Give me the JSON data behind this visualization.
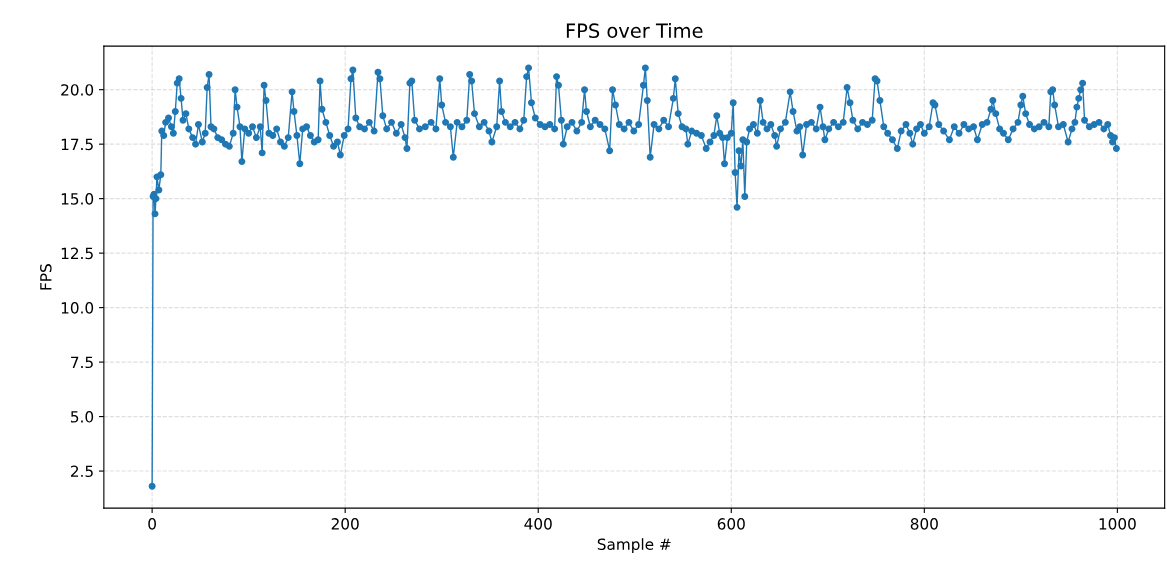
{
  "chart_data": {
    "type": "line",
    "title": "FPS over Time",
    "xlabel": "Sample #",
    "ylabel": "FPS",
    "xlim": [
      -50,
      1049
    ],
    "ylim": [
      0.8,
      22.0
    ],
    "xticks": [
      0,
      200,
      400,
      600,
      800,
      1000
    ],
    "yticks": [
      {
        "value": 2.5,
        "label": "2.5"
      },
      {
        "value": 5,
        "label": "5.0"
      },
      {
        "value": 7.5,
        "label": "7.5"
      },
      {
        "value": 10,
        "label": "10.0"
      },
      {
        "value": 12.5,
        "label": "12.5"
      },
      {
        "value": 15,
        "label": "15.0"
      },
      {
        "value": 17.5,
        "label": "17.5"
      },
      {
        "value": 20,
        "label": "20.0"
      }
    ],
    "grid": true,
    "marker": "circle",
    "line_style": "solid",
    "series": [
      {
        "color": "#1f77b4",
        "x": [
          0,
          1,
          2,
          3,
          4,
          5,
          7,
          9,
          10,
          12,
          14,
          17,
          20,
          22,
          24,
          26,
          28,
          30,
          32,
          35,
          38,
          42,
          45,
          48,
          52,
          55,
          57,
          59,
          61,
          64,
          68,
          72,
          76,
          80,
          84,
          86,
          88,
          91,
          93,
          96,
          100,
          104,
          108,
          112,
          114,
          116,
          118,
          121,
          125,
          129,
          133,
          137,
          141,
          145,
          147,
          150,
          153,
          156,
          160,
          164,
          168,
          172,
          174,
          176,
          180,
          184,
          188,
          192,
          195,
          199,
          203,
          206,
          208,
          211,
          215,
          220,
          225,
          230,
          234,
          236,
          239,
          243,
          248,
          253,
          258,
          262,
          264,
          267,
          269,
          272,
          277,
          283,
          289,
          294,
          298,
          300,
          304,
          309,
          312,
          316,
          321,
          326,
          329,
          331,
          334,
          339,
          344,
          349,
          352,
          357,
          360,
          362,
          366,
          371,
          376,
          381,
          385,
          388,
          390,
          393,
          397,
          402,
          407,
          412,
          417,
          419,
          421,
          424,
          426,
          430,
          435,
          440,
          445,
          448,
          450,
          454,
          459,
          464,
          469,
          474,
          477,
          480,
          484,
          489,
          494,
          499,
          504,
          509,
          511,
          513,
          516,
          520,
          525,
          530,
          535,
          540,
          542,
          545,
          549,
          553,
          555,
          559,
          564,
          569,
          574,
          578,
          582,
          585,
          588,
          591,
          593,
          596,
          600,
          602,
          604,
          606,
          608,
          610,
          612,
          614,
          616,
          619,
          623,
          627,
          630,
          633,
          637,
          641,
          645,
          647,
          651,
          656,
          661,
          664,
          668,
          671,
          674,
          678,
          683,
          688,
          692,
          695,
          697,
          701,
          706,
          711,
          716,
          720,
          723,
          726,
          731,
          736,
          741,
          746,
          749,
          751,
          754,
          758,
          762,
          767,
          772,
          776,
          781,
          785,
          788,
          792,
          796,
          800,
          805,
          809,
          811,
          815,
          820,
          826,
          831,
          836,
          841,
          846,
          851,
          855,
          860,
          865,
          869,
          871,
          874,
          878,
          882,
          887,
          892,
          897,
          900,
          902,
          905,
          909,
          914,
          919,
          924,
          929,
          931,
          933,
          935,
          939,
          944,
          949,
          953,
          956,
          958,
          960,
          962,
          964,
          966,
          971,
          976,
          981,
          986,
          990,
          993,
          995,
          997,
          999
        ],
        "values": [
          1.8,
          15.1,
          15.2,
          14.3,
          15.0,
          16.0,
          15.4,
          16.1,
          18.1,
          17.9,
          18.5,
          18.7,
          18.3,
          18.0,
          19.0,
          20.3,
          20.5,
          19.6,
          18.6,
          18.9,
          18.2,
          17.8,
          17.5,
          18.4,
          17.6,
          18.0,
          20.1,
          20.7,
          18.3,
          18.2,
          17.8,
          17.7,
          17.5,
          17.4,
          18.0,
          20.0,
          19.2,
          18.3,
          16.7,
          18.2,
          18.0,
          18.3,
          17.8,
          18.3,
          17.1,
          20.2,
          19.5,
          18.0,
          17.9,
          18.2,
          17.6,
          17.4,
          17.8,
          19.9,
          19.0,
          17.9,
          16.6,
          18.2,
          18.3,
          17.9,
          17.6,
          17.7,
          20.4,
          19.1,
          18.5,
          17.9,
          17.4,
          17.6,
          17.0,
          17.9,
          18.2,
          20.5,
          20.9,
          18.7,
          18.3,
          18.2,
          18.5,
          18.1,
          20.8,
          20.5,
          18.8,
          18.2,
          18.5,
          18.0,
          18.4,
          17.8,
          17.3,
          20.3,
          20.4,
          18.6,
          18.2,
          18.3,
          18.5,
          18.2,
          20.5,
          19.3,
          18.5,
          18.3,
          16.9,
          18.5,
          18.3,
          18.6,
          20.7,
          20.4,
          18.9,
          18.3,
          18.5,
          18.1,
          17.6,
          18.3,
          20.4,
          19.0,
          18.5,
          18.3,
          18.5,
          18.2,
          18.6,
          20.6,
          21.0,
          19.4,
          18.7,
          18.4,
          18.3,
          18.4,
          18.2,
          20.6,
          20.2,
          18.6,
          17.5,
          18.3,
          18.5,
          18.1,
          18.5,
          20.0,
          19.0,
          18.3,
          18.6,
          18.4,
          18.2,
          17.2,
          20.0,
          19.3,
          18.4,
          18.2,
          18.5,
          18.1,
          18.4,
          20.2,
          21.0,
          19.5,
          16.9,
          18.4,
          18.2,
          18.6,
          18.3,
          19.6,
          20.5,
          18.9,
          18.3,
          18.2,
          17.5,
          18.1,
          18.0,
          17.9,
          17.3,
          17.6,
          17.9,
          18.8,
          18.0,
          17.8,
          16.6,
          17.8,
          18.0,
          19.4,
          16.2,
          14.6,
          17.2,
          16.5,
          17.7,
          15.1,
          17.6,
          18.2,
          18.4,
          18.0,
          19.5,
          18.5,
          18.2,
          18.4,
          17.9,
          17.4,
          18.2,
          18.5,
          19.9,
          19.0,
          18.1,
          18.3,
          17.0,
          18.4,
          18.5,
          18.2,
          19.2,
          18.3,
          17.7,
          18.2,
          18.5,
          18.3,
          18.5,
          20.1,
          19.4,
          18.6,
          18.2,
          18.5,
          18.4,
          18.6,
          20.5,
          20.4,
          19.5,
          18.3,
          18.0,
          17.7,
          17.3,
          18.1,
          18.4,
          18.0,
          17.5,
          18.2,
          18.4,
          18.0,
          18.3,
          19.4,
          19.3,
          18.4,
          18.1,
          17.7,
          18.3,
          18.0,
          18.4,
          18.2,
          18.3,
          17.7,
          18.4,
          18.5,
          19.1,
          19.5,
          18.9,
          18.2,
          18.0,
          17.7,
          18.2,
          18.5,
          19.3,
          19.7,
          18.9,
          18.4,
          18.2,
          18.3,
          18.5,
          18.3,
          19.9,
          20.0,
          19.3,
          18.3,
          18.4,
          17.6,
          18.2,
          18.5,
          19.2,
          19.6,
          20.0,
          20.3,
          18.6,
          18.3,
          18.4,
          18.5,
          18.2,
          18.4,
          17.9,
          17.6,
          17.8,
          17.3
        ]
      }
    ]
  }
}
